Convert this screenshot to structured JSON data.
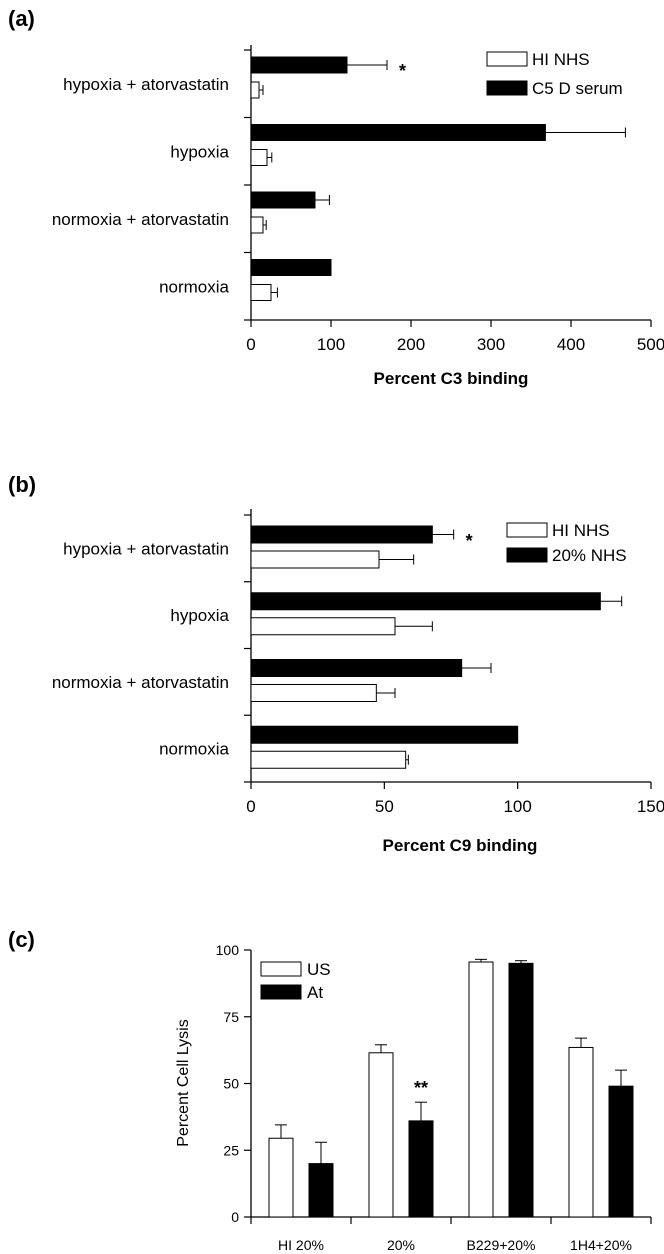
{
  "chart_data": [
    {
      "type": "bar",
      "orientation": "horizontal",
      "panel_label": "(a)",
      "categories": [
        "hypoxia + atorvastatin",
        "hypoxia",
        "normoxia + atorvastatin",
        "normoxia"
      ],
      "xlabel": "Percent C3 binding",
      "xlim": [
        0,
        500
      ],
      "xticks": [
        "0",
        "100",
        "200",
        "300",
        "400",
        "500"
      ],
      "legend_position": "top-right",
      "series": [
        {
          "name": "C5 D serum",
          "fill": "#000000",
          "values": [
            120,
            368,
            80,
            100
          ],
          "errors": [
            50,
            100,
            18,
            0
          ]
        },
        {
          "name": "HI NHS",
          "fill": "#ffffff",
          "values": [
            10,
            20,
            15,
            25
          ],
          "errors": [
            5,
            6,
            4,
            8
          ]
        }
      ],
      "annotations": [
        {
          "text": "*",
          "category": "hypoxia + atorvastatin"
        }
      ]
    },
    {
      "type": "bar",
      "orientation": "horizontal",
      "panel_label": "(b)",
      "categories": [
        "hypoxia + atorvastatin",
        "hypoxia",
        "normoxia + atorvastatin",
        "normoxia"
      ],
      "xlabel": "Percent C9 binding",
      "xlim": [
        0,
        150
      ],
      "xticks": [
        "0",
        "50",
        "100",
        "150"
      ],
      "legend_position": "top-right",
      "series": [
        {
          "name": "20% NHS",
          "fill": "#000000",
          "values": [
            68,
            131,
            79,
            100
          ],
          "errors": [
            8,
            8,
            11,
            0
          ]
        },
        {
          "name": "HI NHS",
          "fill": "#ffffff",
          "values": [
            48,
            54,
            47,
            58
          ],
          "errors": [
            13,
            14,
            7,
            1
          ]
        }
      ],
      "annotations": [
        {
          "text": "*",
          "category": "hypoxia + atorvastatin"
        }
      ]
    },
    {
      "type": "bar",
      "orientation": "vertical",
      "panel_label": "(c)",
      "categories": [
        "HI 20%",
        "20%",
        "B229+20%",
        "1H4+20%"
      ],
      "ylabel": "Percent  Cell Lysis",
      "ylim": [
        0,
        100
      ],
      "yticks": [
        "0",
        "25",
        "50",
        "75",
        "100"
      ],
      "legend_position": "top-left",
      "series": [
        {
          "name": "US",
          "fill": "#ffffff",
          "values": [
            29.5,
            61.5,
            95.5,
            63.5
          ],
          "errors": [
            5,
            3,
            1,
            3.5
          ]
        },
        {
          "name": "At",
          "fill": "#000000",
          "values": [
            20,
            36,
            95,
            49
          ],
          "errors": [
            8,
            7,
            1,
            6
          ]
        }
      ],
      "annotations": [
        {
          "text": "**",
          "category": "20%"
        }
      ]
    }
  ]
}
